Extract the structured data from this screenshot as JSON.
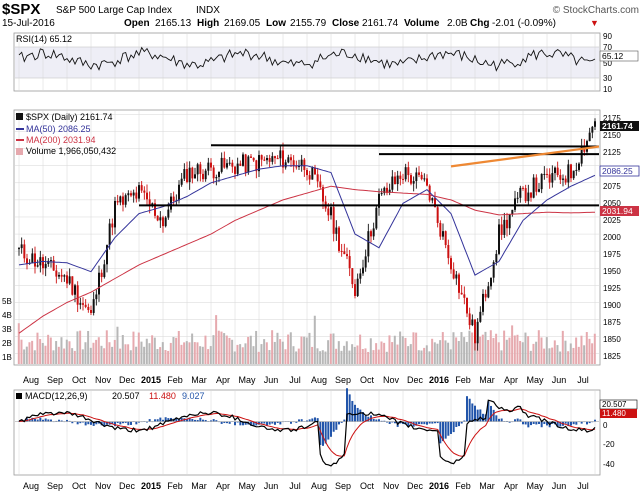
{
  "header": {
    "symbol": "$SPX",
    "name": "S&P 500 Large Cap Index",
    "exchange": "INDX",
    "date": "15-Jul-2016",
    "open_label": "Open",
    "open": "2165.13",
    "high_label": "High",
    "high": "2169.05",
    "low_label": "Low",
    "low": "2155.79",
    "close_label": "Close",
    "close": "2161.74",
    "volume_label": "Volume",
    "volume": "2.0B",
    "chg_label": "Chg",
    "chg": "-2.01 (-0.09%)",
    "chg_arrow": "▼",
    "brand": "© StockCharts.com"
  },
  "colors": {
    "price": "#111111",
    "down_candle": "#cc1111",
    "ma50": "#33339a",
    "ma200": "#cc3344",
    "volume_up": "#e6a9ae",
    "volume_down": "#b7b7b7",
    "trendline_black": "#000000",
    "trendline_orange": "#ee8833",
    "macd_line": "#000000",
    "signal_line": "#cc1111",
    "histogram": "#2255aa",
    "grid": "#d6d6d6",
    "rsi_band": "#ddddee"
  },
  "rsi": {
    "label": "RSI(14) 65.12",
    "current": "65.12",
    "ticks": [
      "90",
      "70",
      "50",
      "30",
      "10"
    ]
  },
  "price_panel": {
    "legend": {
      "main": "$SPX (Daily) 2161.74",
      "ma50": "MA(50) 2086.25",
      "ma200": "MA(200) 2031.94",
      "volume": "Volume 1,966,050,432"
    },
    "ticks": [
      "2175",
      "2150",
      "2125",
      "2100",
      "2075",
      "2050",
      "2025",
      "2000",
      "1975",
      "1950",
      "1925",
      "1900",
      "1875",
      "1850",
      "1825"
    ],
    "value_badges": {
      "price": "2161.74",
      "ma50": "2086.25",
      "ma200": "2031.94"
    },
    "volume_ticks": [
      "5B",
      "4B",
      "3B",
      "2B",
      "1B"
    ]
  },
  "macd": {
    "label_prefix": "MACD(12,26,9)",
    "macd": "20.507",
    "signal": "11.480",
    "histogram": "9.027",
    "ticks": [
      "20",
      "0",
      "-20",
      "-40"
    ],
    "badges": [
      "20.507",
      "11.480"
    ]
  },
  "x_axis_labels": [
    "Aug",
    "Sep",
    "Oct",
    "Nov",
    "Dec",
    "2015",
    "Feb",
    "Mar",
    "Apr",
    "May",
    "Jun",
    "Jul",
    "Aug",
    "Sep",
    "Oct",
    "Nov",
    "Dec",
    "2016",
    "Feb",
    "Mar",
    "Apr",
    "May",
    "Jun",
    "Jul"
  ],
  "chart_data": {
    "type": "line",
    "y_range": [
      1810,
      2180
    ],
    "x": [
      "2014-07",
      "2014-08",
      "2014-09",
      "2014-10",
      "2014-11",
      "2014-12",
      "2015-01",
      "2015-02",
      "2015-03",
      "2015-04",
      "2015-05",
      "2015-06",
      "2015-07",
      "2015-08",
      "2015-09",
      "2015-10",
      "2015-11",
      "2015-12",
      "2016-01",
      "2016-02",
      "2016-03",
      "2016-04",
      "2016-05",
      "2016-06",
      "2016-07"
    ],
    "series": [
      {
        "values": [
          1975,
          1955,
          1935,
          1880,
          2040,
          2060,
          2020,
          2090,
          2095,
          2100,
          2105,
          2110,
          2100,
          2025,
          1920,
          2050,
          2090,
          2070,
          1960,
          1850,
          2000,
          2060,
          2080,
          2090,
          2165
        ]
      },
      {
        "values": [
          1955,
          1960,
          1958,
          1945,
          1995,
          2030,
          2040,
          2055,
          2075,
          2085,
          2095,
          2100,
          2100,
          2090,
          2000,
          1980,
          2045,
          2065,
          2030,
          1940,
          1960,
          2020,
          2050,
          2070,
          2086
        ]
      },
      {
        "values": [
          1855,
          1880,
          1900,
          1915,
          1935,
          1955,
          1970,
          1985,
          2000,
          2020,
          2035,
          2050,
          2060,
          2070,
          2065,
          2062,
          2060,
          2058,
          2050,
          2035,
          2028,
          2030,
          2032,
          2031,
          2032
        ]
      }
    ],
    "trendlines": [
      {
        "from": [
          "2015-03",
          2130
        ],
        "to": [
          "2016-07",
          2128
        ]
      },
      {
        "from": [
          "2015-10",
          2117
        ],
        "to": [
          "2016-07",
          2117
        ]
      },
      {
        "from": [
          "2014-12",
          2042
        ],
        "to": [
          "2016-07",
          2042
        ]
      },
      {
        "from": [
          "2016-01",
          2099
        ],
        "to": [
          "2016-07",
          2128
        ]
      }
    ]
  }
}
